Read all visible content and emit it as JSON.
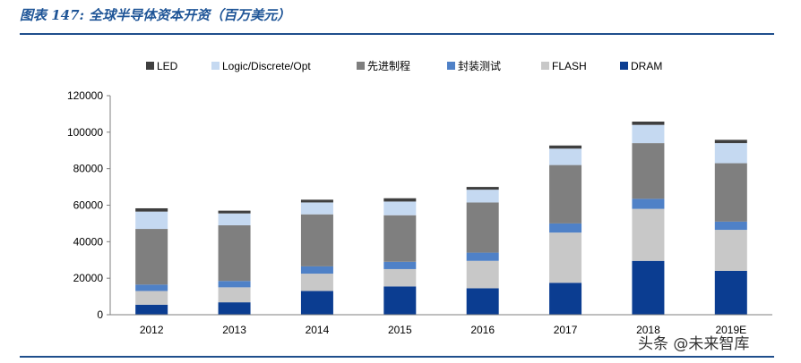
{
  "header": {
    "title": "图表 147: 全球半导体资本开资（百万美元）"
  },
  "watermark": "头条 @未来智库",
  "chart_data": {
    "type": "bar",
    "stacked": true,
    "categories": [
      "2012",
      "2013",
      "2014",
      "2015",
      "2016",
      "2017",
      "2018",
      "2019E"
    ],
    "ylim": [
      0,
      120000
    ],
    "yticks": [
      0,
      20000,
      40000,
      60000,
      80000,
      100000,
      120000
    ],
    "ytick_labels": [
      "0",
      "20000",
      "40000",
      "60000",
      "80000",
      "100000",
      "120000"
    ],
    "grid": false,
    "legend_position": "top",
    "legend_order": [
      "LED",
      "Logic/Discrete/Opt",
      "先进制程",
      "封装测试",
      "FLASH",
      "DRAM"
    ],
    "series": [
      {
        "name": "DRAM",
        "color": "#0b3d91",
        "values": [
          5500,
          6800,
          13000,
          15500,
          14500,
          17500,
          29500,
          24000
        ]
      },
      {
        "name": "FLASH",
        "color": "#c8c8c8",
        "values": [
          7500,
          8200,
          9500,
          9500,
          15000,
          27500,
          28500,
          22500
        ]
      },
      {
        "name": "封装测试",
        "color": "#4f81c7",
        "values": [
          3500,
          3500,
          4000,
          4000,
          4500,
          5000,
          5500,
          4500
        ]
      },
      {
        "name": "先进制程",
        "color": "#7f7f7f",
        "values": [
          30500,
          30500,
          28500,
          25500,
          27500,
          32000,
          30500,
          32000
        ]
      },
      {
        "name": "Logic/Discrete/Opt",
        "color": "#c5d9f1",
        "values": [
          9500,
          6500,
          6500,
          7500,
          7000,
          9000,
          10000,
          11000
        ]
      },
      {
        "name": "LED",
        "color": "#3f3f3f",
        "values": [
          1800,
          1500,
          1500,
          1800,
          1500,
          1700,
          1800,
          1800
        ]
      }
    ]
  }
}
